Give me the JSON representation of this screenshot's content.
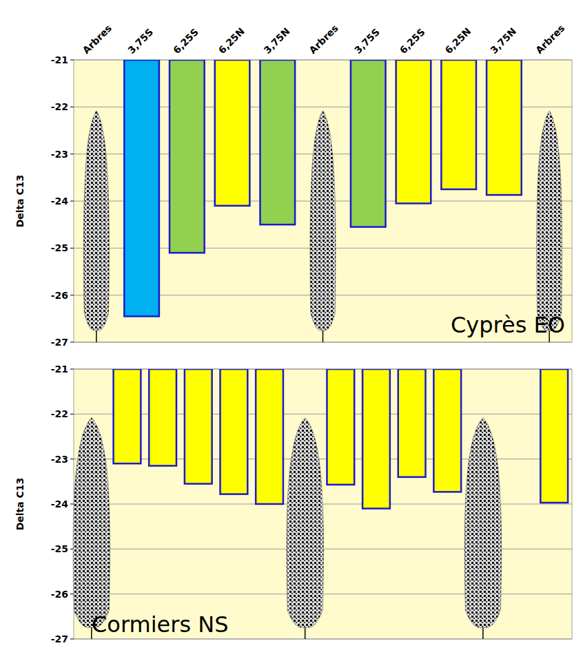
{
  "chart_data": [
    {
      "type": "bar",
      "title": "Cyprès EO",
      "ylabel": "Delta C13",
      "categories": [
        "Arbres",
        "3,75S",
        "6,25S",
        "6,25N",
        "3,75N",
        "Arbres",
        "3,75S",
        "6,25S",
        "6,25N",
        "3,75N",
        "Arbres"
      ],
      "values": [
        null,
        -26.45,
        -25.1,
        -24.1,
        -24.5,
        null,
        -24.55,
        -24.05,
        -23.75,
        -23.87,
        null
      ],
      "colors": [
        null,
        "#00b0f0",
        "#92d050",
        "#ffff00",
        "#92d050",
        null,
        "#92d050",
        "#ffff00",
        "#ffff00",
        "#ffff00",
        null
      ],
      "trees": [
        0,
        5,
        10
      ],
      "ylim": [
        -27,
        -21
      ],
      "yticks": [
        -21,
        -22,
        -23,
        -24,
        -25,
        -26,
        -27
      ],
      "grid": true
    },
    {
      "type": "bar",
      "title": "Cormiers NS",
      "ylabel": "Delta C13",
      "categories": [
        null,
        null,
        null,
        null,
        null,
        null,
        null,
        null,
        null,
        null,
        null,
        null,
        null,
        null
      ],
      "values": [
        null,
        -23.1,
        -23.15,
        -23.55,
        -23.78,
        -24.0,
        null,
        -23.57,
        -24.1,
        -23.4,
        -23.73,
        null,
        null,
        -23.97
      ],
      "color": "#ffff00",
      "trees": [
        0,
        6,
        11
      ],
      "ylim": [
        -27,
        -21
      ],
      "yticks": [
        -21,
        -22,
        -23,
        -24,
        -25,
        -26,
        -27
      ],
      "grid": true,
      "tick_labels": "y"
    }
  ]
}
